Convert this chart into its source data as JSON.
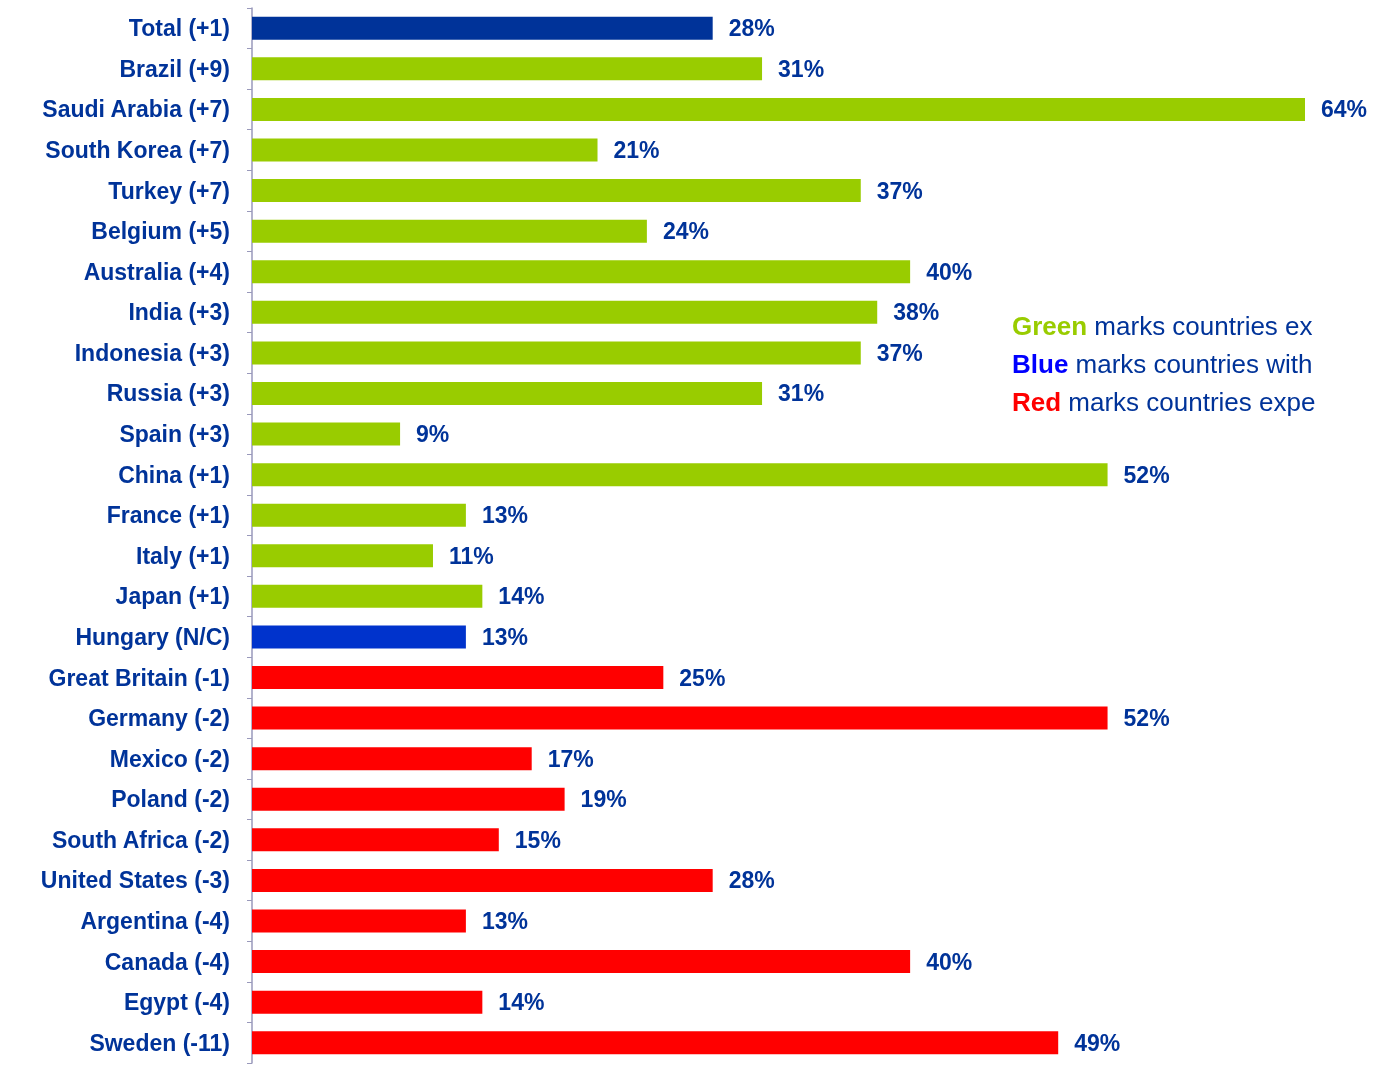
{
  "chart_data": {
    "type": "bar",
    "orientation": "horizontal",
    "categories": [
      "Total (+1)",
      "Brazil (+9)",
      "Saudi Arabia (+7)",
      "South Korea (+7)",
      "Turkey (+7)",
      "Belgium (+5)",
      "Australia (+4)",
      "India (+3)",
      "Indonesia (+3)",
      "Russia (+3)",
      "Spain (+3)",
      "China (+1)",
      "France (+1)",
      "Italy (+1)",
      "Japan (+1)",
      "Hungary (N/C)",
      "Great Britain (-1)",
      "Germany (-2)",
      "Mexico (-2)",
      "Poland (-2)",
      "South Africa (-2)",
      "United States (-3)",
      "Argentina (-4)",
      "Canada (-4)",
      "Egypt (-4)",
      "Sweden (-11)"
    ],
    "values": [
      28,
      31,
      64,
      21,
      37,
      24,
      40,
      38,
      37,
      31,
      9,
      52,
      13,
      11,
      14,
      13,
      25,
      52,
      17,
      19,
      15,
      28,
      13,
      40,
      14,
      49
    ],
    "value_labels": [
      "28%",
      "31%",
      "64%",
      "21%",
      "37%",
      "24%",
      "40%",
      "38%",
      "37%",
      "31%",
      "9%",
      "52%",
      "13%",
      "11%",
      "14%",
      "13%",
      "25%",
      "52%",
      "17%",
      "19%",
      "15%",
      "28%",
      "13%",
      "40%",
      "14%",
      "49%"
    ],
    "colors": [
      "#003399",
      "#99cc00",
      "#99cc00",
      "#99cc00",
      "#99cc00",
      "#99cc00",
      "#99cc00",
      "#99cc00",
      "#99cc00",
      "#99cc00",
      "#99cc00",
      "#99cc00",
      "#99cc00",
      "#99cc00",
      "#99cc00",
      "#0033cc",
      "#ff0000",
      "#ff0000",
      "#ff0000",
      "#ff0000",
      "#ff0000",
      "#ff0000",
      "#ff0000",
      "#ff0000",
      "#ff0000",
      "#ff0000"
    ],
    "annotations": [
      "Green marks countries ex",
      "Blue marks countries with",
      "Red marks countries expe"
    ]
  }
}
